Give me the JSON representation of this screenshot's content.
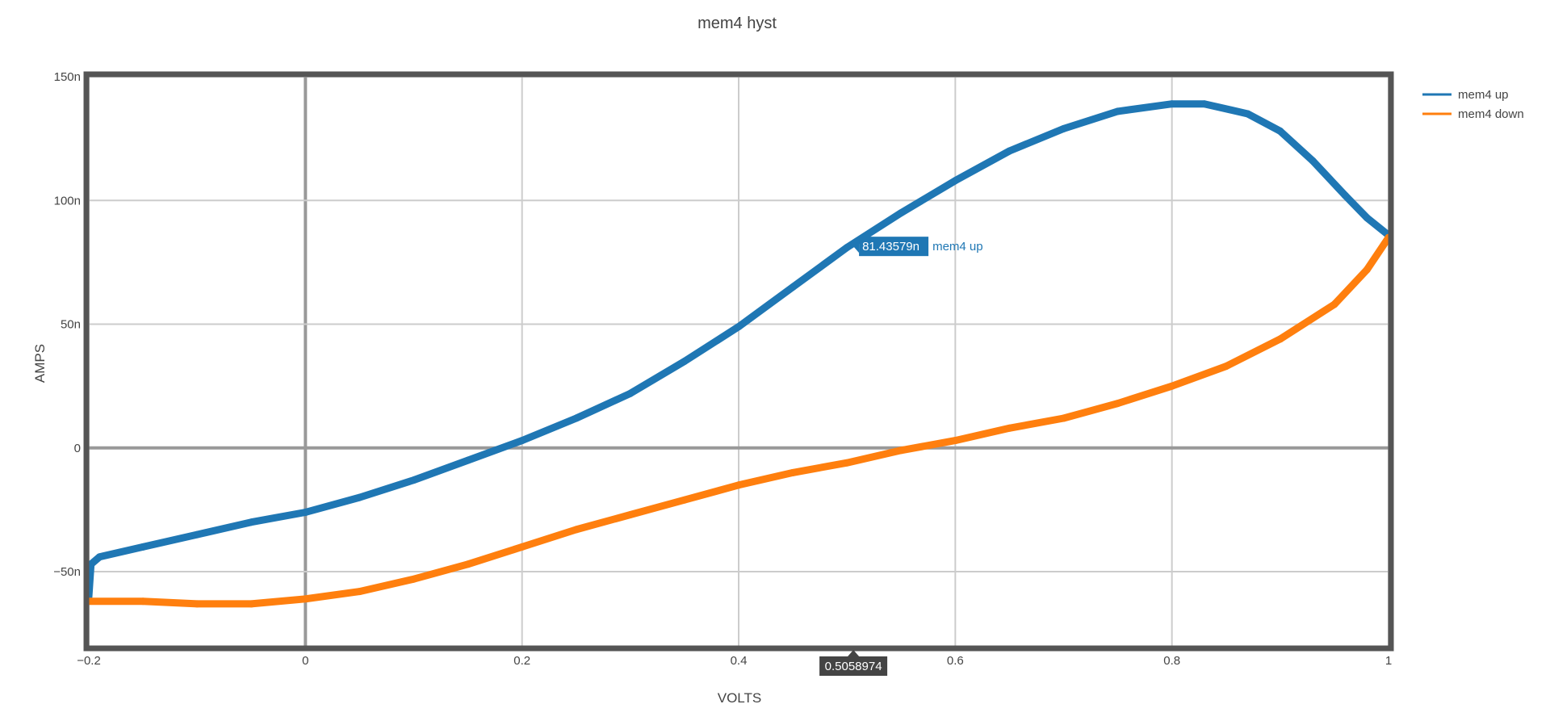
{
  "chart_data": {
    "type": "line",
    "title": "mem4 hyst",
    "xlabel": "VOLTS",
    "ylabel": "AMPS",
    "xlim": [
      -0.2,
      1.0
    ],
    "ylim": [
      -8e-08,
      1.5e-07
    ],
    "x_ticks": [
      {
        "value": -0.2,
        "label": "−0.2"
      },
      {
        "value": 0,
        "label": "0"
      },
      {
        "value": 0.2,
        "label": "0.2"
      },
      {
        "value": 0.4,
        "label": "0.4"
      },
      {
        "value": 0.6,
        "label": "0.6"
      },
      {
        "value": 0.8,
        "label": "0.8"
      },
      {
        "value": 1.0,
        "label": "1"
      }
    ],
    "y_ticks": [
      {
        "value": -5e-08,
        "label": "−50n"
      },
      {
        "value": 0,
        "label": "0"
      },
      {
        "value": 5e-08,
        "label": "50n"
      },
      {
        "value": 1e-07,
        "label": "100n"
      },
      {
        "value": 1.5e-07,
        "label": "150n"
      }
    ],
    "grid": true,
    "legend_position": "top-right",
    "series": [
      {
        "name": "mem4 up",
        "color": "#1f77b4",
        "points": [
          [
            -0.2,
            -6e-08
          ],
          [
            -0.198,
            -4.7e-08
          ],
          [
            -0.19,
            -4.4e-08
          ],
          [
            -0.15,
            -4e-08
          ],
          [
            -0.1,
            -3.5e-08
          ],
          [
            -0.05,
            -3e-08
          ],
          [
            0.0,
            -2.6e-08
          ],
          [
            0.05,
            -2e-08
          ],
          [
            0.1,
            -1.3e-08
          ],
          [
            0.15,
            -5e-09
          ],
          [
            0.2,
            3e-09
          ],
          [
            0.25,
            1.2e-08
          ],
          [
            0.3,
            2.2e-08
          ],
          [
            0.35,
            3.5e-08
          ],
          [
            0.4,
            4.9e-08
          ],
          [
            0.45,
            6.5e-08
          ],
          [
            0.5,
            8.1e-08
          ],
          [
            0.55,
            9.5e-08
          ],
          [
            0.6,
            1.08e-07
          ],
          [
            0.65,
            1.2e-07
          ],
          [
            0.7,
            1.29e-07
          ],
          [
            0.75,
            1.36e-07
          ],
          [
            0.8,
            1.39e-07
          ],
          [
            0.83,
            1.39e-07
          ],
          [
            0.87,
            1.35e-07
          ],
          [
            0.9,
            1.28e-07
          ],
          [
            0.93,
            1.16e-07
          ],
          [
            0.96,
            1.02e-07
          ],
          [
            0.98,
            9.3e-08
          ],
          [
            1.0,
            8.6e-08
          ]
        ]
      },
      {
        "name": "mem4 down",
        "color": "#ff7f0e",
        "points": [
          [
            -0.2,
            -6.2e-08
          ],
          [
            -0.15,
            -6.2e-08
          ],
          [
            -0.1,
            -6.3e-08
          ],
          [
            -0.05,
            -6.3e-08
          ],
          [
            0.0,
            -6.1e-08
          ],
          [
            0.05,
            -5.8e-08
          ],
          [
            0.1,
            -5.3e-08
          ],
          [
            0.15,
            -4.7e-08
          ],
          [
            0.2,
            -4e-08
          ],
          [
            0.25,
            -3.3e-08
          ],
          [
            0.3,
            -2.7e-08
          ],
          [
            0.35,
            -2.1e-08
          ],
          [
            0.4,
            -1.5e-08
          ],
          [
            0.45,
            -1e-08
          ],
          [
            0.5,
            -6e-09
          ],
          [
            0.55,
            -1e-09
          ],
          [
            0.6,
            3e-09
          ],
          [
            0.65,
            8e-09
          ],
          [
            0.7,
            1.2e-08
          ],
          [
            0.75,
            1.8e-08
          ],
          [
            0.8,
            2.5e-08
          ],
          [
            0.85,
            3.3e-08
          ],
          [
            0.9,
            4.4e-08
          ],
          [
            0.95,
            5.8e-08
          ],
          [
            0.98,
            7.2e-08
          ],
          [
            1.0,
            8.5e-08
          ]
        ]
      }
    ],
    "hover": {
      "x_label": "0.5058974",
      "y_label": "81.43579n",
      "series_name": "mem4 up",
      "x_value": 0.5058974,
      "y_value": 8.143579e-08,
      "box_color": "#1f77b4",
      "x_box_color": "#444444"
    }
  }
}
